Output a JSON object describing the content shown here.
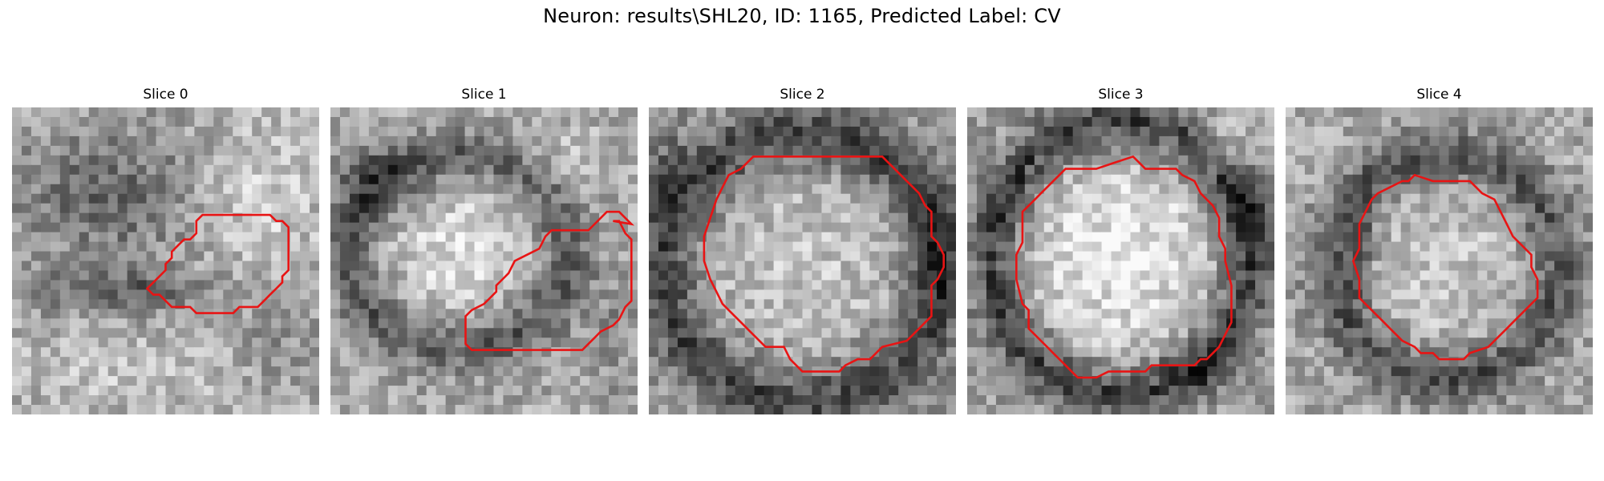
{
  "figure": {
    "title": "Neuron: results\\SHL20, ID: 1165, Predicted Label: CV"
  },
  "contour_color": "#e81414",
  "panels": [
    {
      "label": "Slice 0"
    },
    {
      "label": "Slice 1"
    },
    {
      "label": "Slice 2"
    },
    {
      "label": "Slice 3"
    },
    {
      "label": "Slice 4"
    }
  ]
}
